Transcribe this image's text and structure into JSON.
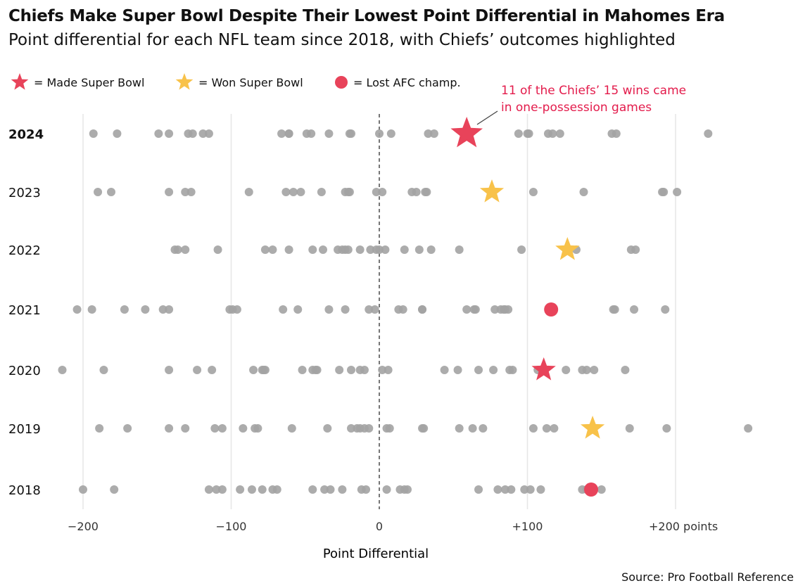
{
  "title": "Chiefs Make Super Bowl Despite Their Lowest Point Differential in Mahomes Era",
  "subtitle": "Point differential for each NFL team since 2018, with Chiefs’ outcomes highlighted",
  "legend": [
    {
      "symbol": "star",
      "color": "#e8435a",
      "label": "= Made Super Bowl"
    },
    {
      "symbol": "star",
      "color": "#f8c24a",
      "label": "= Won Super Bowl"
    },
    {
      "symbol": "circle",
      "color": "#e8435a",
      "label": "= Lost AFC champ."
    }
  ],
  "annotation": "11 of the Chiefs’ 15 wins came in one-possession games",
  "annotation_lines": [
    "11 of the Chiefs’ 15 wins came",
    "in one-possession games"
  ],
  "source": "Source: Pro Football Reference",
  "colors": {
    "made": "#e8435a",
    "won": "#f8c24a",
    "lost": "#e8435a",
    "other": "#a3a3a3",
    "annotation": "#e31b4b"
  },
  "chart_data": {
    "type": "scatter",
    "title": "Chiefs Make Super Bowl Despite Their Lowest Point Differential in Mahomes Era",
    "xlabel": "Point Differential",
    "xlim": [
      -222,
      250
    ],
    "xticks": [
      -200,
      -100,
      0,
      100,
      200
    ],
    "xtick_labels": [
      "−200",
      "−100",
      "0",
      "+100",
      "+200 points"
    ],
    "zero_line": "dashed",
    "grid": true,
    "rows": [
      {
        "year": "2024",
        "bold": true,
        "others": [
          -193,
          -177,
          -149,
          -142,
          -129,
          -126,
          -119,
          -115,
          -66,
          -61,
          -61,
          -49,
          -46,
          -34,
          -20,
          -19,
          0,
          8,
          33,
          37,
          94,
          100,
          101,
          114,
          117,
          122,
          157,
          160,
          222
        ],
        "chiefs": {
          "value": 59,
          "outcome": "made"
        }
      },
      {
        "year": "2023",
        "bold": false,
        "others": [
          -190,
          -181,
          -142,
          -131,
          -127,
          -88,
          -63,
          -58,
          -53,
          -39,
          -23,
          -21,
          -20,
          -2,
          2,
          22,
          25,
          31,
          32,
          104,
          138,
          191,
          192,
          201
        ],
        "chiefs": {
          "value": 76,
          "outcome": "won"
        }
      },
      {
        "year": "2022",
        "bold": false,
        "others": [
          -138,
          -136,
          -131,
          -109,
          -77,
          -72,
          -61,
          -45,
          -38,
          -28,
          -25,
          -23,
          -21,
          -13,
          -6,
          -2,
          0,
          4,
          17,
          27,
          35,
          54,
          96,
          133,
          170,
          173
        ],
        "chiefs": {
          "value": 127,
          "outcome": "won"
        }
      },
      {
        "year": "2021",
        "bold": false,
        "others": [
          -204,
          -194,
          -172,
          -158,
          -146,
          -142,
          -101,
          -99,
          -96,
          -65,
          -55,
          -34,
          -23,
          -7,
          -3,
          13,
          16,
          29,
          29,
          59,
          64,
          65,
          78,
          82,
          84,
          85,
          87,
          158,
          159,
          172,
          193
        ],
        "chiefs": {
          "value": 116,
          "outcome": "lost"
        }
      },
      {
        "year": "2020",
        "bold": false,
        "others": [
          -214,
          -186,
          -142,
          -123,
          -113,
          -85,
          -79,
          -78,
          -77,
          -52,
          -45,
          -43,
          -42,
          -27,
          -19,
          -13,
          -10,
          2,
          6,
          44,
          53,
          67,
          77,
          88,
          90,
          107,
          126,
          137,
          140,
          145,
          166
        ],
        "chiefs": {
          "value": 111,
          "outcome": "made"
        }
      },
      {
        "year": "2019",
        "bold": false,
        "others": [
          -189,
          -170,
          -142,
          -131,
          -111,
          -106,
          -92,
          -84,
          -82,
          -59,
          -35,
          -19,
          -15,
          -13,
          -10,
          -7,
          5,
          7,
          29,
          30,
          54,
          63,
          70,
          104,
          113,
          118,
          169,
          194,
          249
        ],
        "chiefs": {
          "value": 144,
          "outcome": "won"
        }
      },
      {
        "year": "2018",
        "bold": false,
        "others": [
          -200,
          -179,
          -115,
          -110,
          -106,
          -94,
          -86,
          -79,
          -72,
          -69,
          -45,
          -37,
          -33,
          -25,
          -12,
          -9,
          5,
          14,
          17,
          19,
          67,
          80,
          85,
          89,
          98,
          102,
          109,
          137,
          140,
          150
        ],
        "chiefs": {
          "value": 143,
          "outcome": "lost"
        }
      }
    ]
  }
}
